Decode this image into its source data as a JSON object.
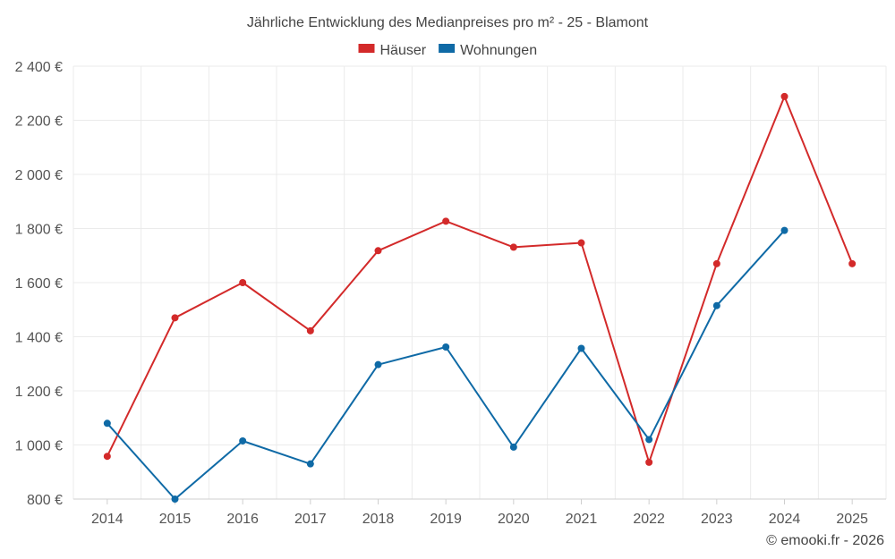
{
  "chart_data": {
    "type": "line",
    "title": "Jährliche Entwicklung des Medianpreises pro m² - 25 - Blamont",
    "categories": [
      "2014",
      "2015",
      "2016",
      "2017",
      "2018",
      "2019",
      "2020",
      "2021",
      "2022",
      "2023",
      "2024",
      "2025"
    ],
    "series": [
      {
        "name": "Häuser",
        "color": "#d32a2a",
        "values": [
          958,
          1470,
          1600,
          1422,
          1718,
          1827,
          1731,
          1747,
          936,
          1670,
          2288,
          1670
        ]
      },
      {
        "name": "Wohnungen",
        "color": "#0f6aa6",
        "values": [
          1080,
          800,
          1015,
          930,
          1297,
          1362,
          992,
          1357,
          1020,
          1515,
          1793,
          null
        ]
      }
    ],
    "ylim": [
      800,
      2400
    ],
    "yticks": [
      800,
      1000,
      1200,
      1400,
      1600,
      1800,
      2000,
      2200,
      2400
    ],
    "ytick_labels": [
      "800 €",
      "1 000 €",
      "1 200 €",
      "1 400 €",
      "1 600 €",
      "1 800 €",
      "2 000 €",
      "2 200 €",
      "2 400 €"
    ],
    "xlabel": "",
    "ylabel": "",
    "grid": true,
    "legend_position": "top-center"
  },
  "credit": "© emooki.fr - 2026"
}
